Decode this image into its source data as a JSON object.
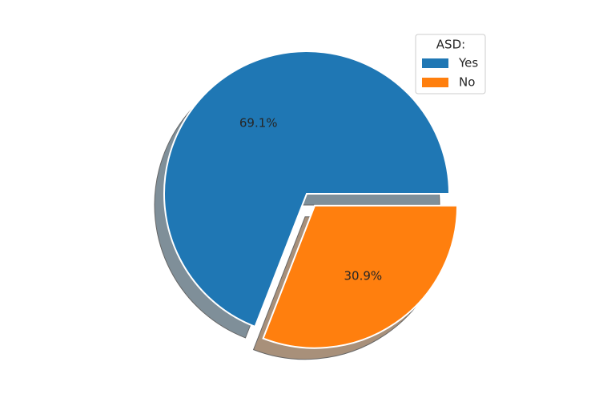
{
  "chart_data": {
    "type": "pie",
    "categories": [
      "Yes",
      "No"
    ],
    "values": [
      69.1,
      30.9
    ],
    "value_labels": [
      "69.1%",
      "30.9%"
    ],
    "colors": [
      "#1f77b4",
      "#ff7f0e"
    ],
    "explode": [
      0,
      0.1
    ],
    "shadow": true,
    "legend_title": "ASD:",
    "legend": "upper right"
  }
}
